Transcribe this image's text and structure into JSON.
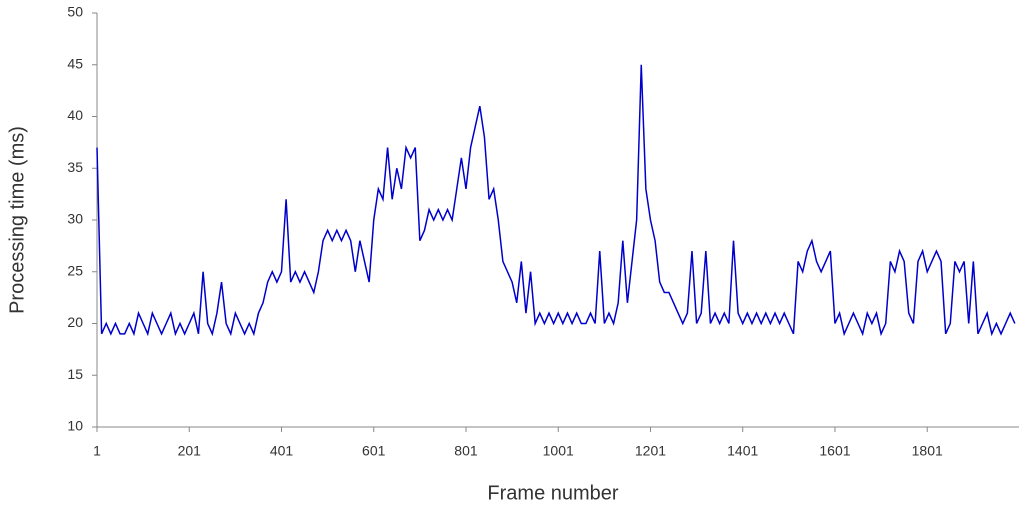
{
  "chart_data": {
    "type": "line",
    "x_label": "Frame number",
    "y_label": "Processing time (ms)",
    "x": [
      1,
      11,
      21,
      31,
      41,
      51,
      61,
      71,
      81,
      91,
      101,
      111,
      121,
      131,
      141,
      151,
      161,
      171,
      181,
      191,
      201,
      211,
      221,
      231,
      241,
      251,
      261,
      271,
      281,
      291,
      301,
      311,
      321,
      331,
      341,
      351,
      361,
      371,
      381,
      391,
      401,
      411,
      421,
      431,
      441,
      451,
      461,
      471,
      481,
      491,
      501,
      511,
      521,
      531,
      541,
      551,
      561,
      571,
      581,
      591,
      601,
      611,
      621,
      631,
      641,
      651,
      661,
      671,
      681,
      691,
      701,
      711,
      721,
      731,
      741,
      751,
      761,
      771,
      781,
      791,
      801,
      811,
      821,
      831,
      841,
      851,
      861,
      871,
      881,
      891,
      901,
      911,
      921,
      931,
      941,
      951,
      961,
      971,
      981,
      991,
      1001,
      1011,
      1021,
      1031,
      1041,
      1051,
      1061,
      1071,
      1081,
      1091,
      1101,
      1111,
      1121,
      1131,
      1141,
      1151,
      1161,
      1171,
      1181,
      1191,
      1201,
      1211,
      1221,
      1231,
      1241,
      1251,
      1261,
      1271,
      1281,
      1291,
      1301,
      1311,
      1321,
      1331,
      1341,
      1351,
      1361,
      1371,
      1381,
      1391,
      1401,
      1411,
      1421,
      1431,
      1441,
      1451,
      1461,
      1471,
      1481,
      1491,
      1501,
      1511,
      1521,
      1531,
      1541,
      1551,
      1561,
      1571,
      1581,
      1591,
      1601,
      1611,
      1621,
      1631,
      1641,
      1651,
      1661,
      1671,
      1681,
      1691,
      1701,
      1711,
      1721,
      1731,
      1741,
      1751,
      1761,
      1771,
      1781,
      1791,
      1801,
      1811,
      1821,
      1831,
      1841,
      1851,
      1861,
      1871,
      1881,
      1891,
      1901,
      1911,
      1921,
      1931,
      1941,
      1951,
      1961,
      1971,
      1981,
      1991
    ],
    "series": [
      {
        "color": "#0000cc",
        "values": [
          37,
          19,
          20,
          19,
          20,
          19,
          19,
          20,
          19,
          21,
          20,
          19,
          21,
          20,
          19,
          20,
          21,
          19,
          20,
          19,
          20,
          21,
          19,
          25,
          20,
          19,
          21,
          24,
          20,
          19,
          21,
          20,
          19,
          20,
          19,
          21,
          22,
          24,
          25,
          24,
          25,
          32,
          24,
          25,
          24,
          25,
          24,
          23,
          25,
          28,
          29,
          28,
          29,
          28,
          29,
          28,
          25,
          28,
          26,
          24,
          30,
          33,
          32,
          37,
          32,
          35,
          33,
          37,
          36,
          37,
          28,
          29,
          31,
          30,
          31,
          30,
          31,
          30,
          33,
          36,
          33,
          37,
          39,
          41,
          38,
          32,
          33,
          30,
          26,
          25,
          24,
          22,
          26,
          21,
          25,
          20,
          21,
          20,
          21,
          20,
          21,
          20,
          21,
          20,
          21,
          20,
          20,
          21,
          20,
          27,
          20,
          21,
          20,
          22,
          28,
          22,
          26,
          30,
          45,
          33,
          30,
          28,
          24,
          23,
          23,
          22,
          21,
          20,
          21,
          27,
          20,
          21,
          27,
          20,
          21,
          20,
          21,
          20,
          28,
          21,
          20,
          21,
          20,
          21,
          20,
          21,
          20,
          21,
          20,
          21,
          20,
          19,
          26,
          25,
          27,
          28,
          26,
          25,
          26,
          27,
          20,
          21,
          19,
          20,
          21,
          20,
          19,
          21,
          20,
          21,
          19,
          20,
          26,
          25,
          27,
          26,
          21,
          20,
          26,
          27,
          25,
          26,
          27,
          26,
          19,
          20,
          26,
          25,
          26,
          20,
          26,
          19,
          20,
          21,
          19,
          20,
          19,
          20,
          21,
          20
        ]
      }
    ],
    "xlim": [
      1,
      2000
    ],
    "ylim": [
      10,
      50
    ],
    "xticks": [
      1,
      201,
      401,
      601,
      801,
      1001,
      1201,
      1401,
      1601,
      1801
    ],
    "yticks": [
      10,
      15,
      20,
      25,
      30,
      35,
      40,
      45,
      50
    ]
  }
}
